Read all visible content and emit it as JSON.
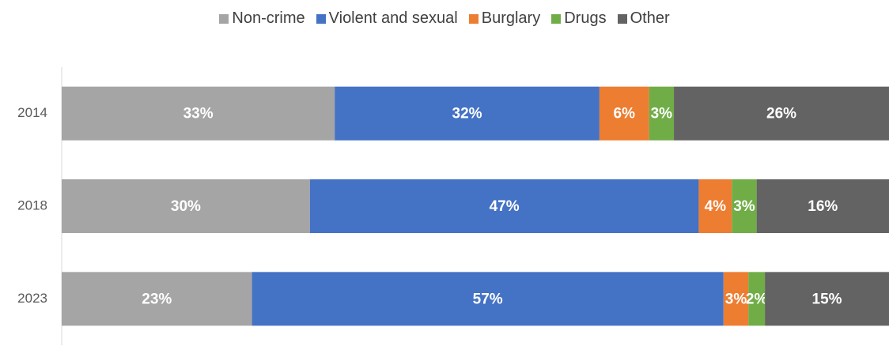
{
  "chart_data": {
    "type": "stacked-bar-horizontal",
    "categories": [
      "2014",
      "2018",
      "2023"
    ],
    "xlim": [
      0,
      100
    ],
    "legend": "top",
    "series": [
      {
        "name": "Non-crime",
        "color": "#a5a5a5",
        "values": [
          33,
          30,
          23
        ],
        "value_labels": [
          "33%",
          "30%",
          "23%"
        ]
      },
      {
        "name": "Violent and sexual",
        "color": "#4472c4",
        "values": [
          32,
          47,
          57
        ],
        "value_labels": [
          "32%",
          "47%",
          "57%"
        ]
      },
      {
        "name": "Burglary",
        "color": "#ed7d31",
        "values": [
          6,
          4,
          3
        ],
        "value_labels": [
          "6%",
          "4%",
          "3%"
        ]
      },
      {
        "name": "Drugs",
        "color": "#70ad47",
        "values": [
          3,
          3,
          2
        ],
        "value_labels": [
          "3%",
          "3%",
          "2%"
        ]
      },
      {
        "name": "Other",
        "color": "#636363",
        "values": [
          26,
          16,
          15
        ],
        "value_labels": [
          "26%",
          "16%",
          "15%"
        ]
      }
    ]
  }
}
